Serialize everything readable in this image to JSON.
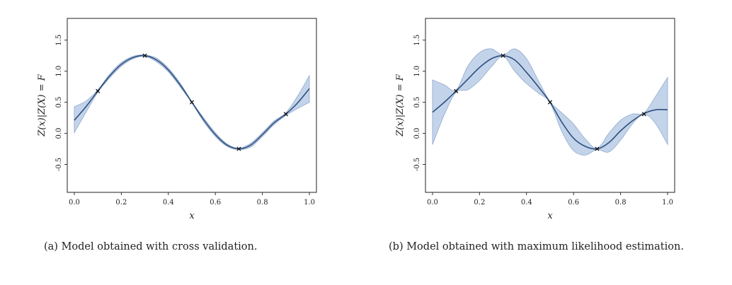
{
  "chart_data": [
    {
      "type": "line",
      "xlabel": "x",
      "ylabel": "Z(x)|Z(X) = F",
      "xlim": [
        -0.03,
        1.03
      ],
      "ylim": [
        -0.95,
        1.85
      ],
      "xticks": [
        "0.0",
        "0.2",
        "0.4",
        "0.6",
        "0.8",
        "1.0"
      ],
      "yticks": [
        "-0.5",
        "0.0",
        "0.5",
        "1.0",
        "1.5"
      ],
      "grid": false,
      "series": [
        {
          "role": "mean",
          "x": [
            0.0,
            0.05,
            0.1,
            0.15,
            0.2,
            0.25,
            0.3,
            0.35,
            0.4,
            0.45,
            0.5,
            0.55,
            0.6,
            0.65,
            0.7,
            0.75,
            0.8,
            0.85,
            0.9,
            0.95,
            1.0
          ],
          "values": [
            0.21,
            0.43,
            0.68,
            0.92,
            1.11,
            1.22,
            1.25,
            1.18,
            1.02,
            0.78,
            0.5,
            0.22,
            -0.02,
            -0.19,
            -0.25,
            -0.19,
            -0.02,
            0.17,
            0.31,
            0.49,
            0.72
          ]
        },
        {
          "role": "band-upper",
          "x": [
            0.0,
            0.05,
            0.1,
            0.15,
            0.2,
            0.25,
            0.3,
            0.35,
            0.4,
            0.45,
            0.5,
            0.55,
            0.6,
            0.65,
            0.7,
            0.75,
            0.8,
            0.85,
            0.9,
            0.95,
            1.0
          ],
          "values": [
            0.43,
            0.52,
            0.7,
            0.95,
            1.14,
            1.24,
            1.26,
            1.21,
            1.05,
            0.81,
            0.51,
            0.25,
            0.01,
            -0.17,
            -0.24,
            -0.16,
            0.01,
            0.2,
            0.33,
            0.6,
            0.93
          ]
        },
        {
          "role": "band-lower",
          "x": [
            0.0,
            0.05,
            0.1,
            0.15,
            0.2,
            0.25,
            0.3,
            0.35,
            0.4,
            0.45,
            0.5,
            0.55,
            0.6,
            0.65,
            0.7,
            0.75,
            0.8,
            0.85,
            0.9,
            0.95,
            1.0
          ],
          "values": [
            0.01,
            0.34,
            0.66,
            0.89,
            1.08,
            1.2,
            1.24,
            1.15,
            0.99,
            0.75,
            0.49,
            0.19,
            -0.05,
            -0.21,
            -0.26,
            -0.22,
            -0.05,
            0.14,
            0.29,
            0.4,
            0.5
          ]
        },
        {
          "role": "observations",
          "x": [
            0.1,
            0.3,
            0.5,
            0.7,
            0.9
          ],
          "values": [
            0.68,
            1.25,
            0.5,
            -0.25,
            0.31
          ]
        }
      ],
      "colors": {
        "mean": "#2f4f7f",
        "band": "#b9cde6",
        "band_edge": "#8fa9cf",
        "markers": "#111111"
      }
    },
    {
      "type": "line",
      "xlabel": "x",
      "ylabel": "Z(x)|Z(X) = F",
      "xlim": [
        -0.03,
        1.03
      ],
      "ylim": [
        -0.95,
        1.85
      ],
      "xticks": [
        "0.0",
        "0.2",
        "0.4",
        "0.6",
        "0.8",
        "1.0"
      ],
      "yticks": [
        "-0.5",
        "0.0",
        "0.5",
        "1.0",
        "1.5"
      ],
      "grid": false,
      "series": [
        {
          "role": "mean",
          "x": [
            0.0,
            0.05,
            0.1,
            0.15,
            0.2,
            0.25,
            0.3,
            0.35,
            0.4,
            0.45,
            0.5,
            0.55,
            0.6,
            0.65,
            0.7,
            0.75,
            0.8,
            0.85,
            0.9,
            0.95,
            1.0
          ],
          "values": [
            0.34,
            0.5,
            0.68,
            0.87,
            1.06,
            1.2,
            1.25,
            1.18,
            0.98,
            0.75,
            0.5,
            0.18,
            -0.08,
            -0.21,
            -0.25,
            -0.15,
            0.04,
            0.2,
            0.32,
            0.38,
            0.38
          ]
        },
        {
          "role": "band-upper",
          "x": [
            0.0,
            0.05,
            0.1,
            0.15,
            0.2,
            0.25,
            0.3,
            0.35,
            0.4,
            0.45,
            0.5,
            0.55,
            0.6,
            0.65,
            0.7,
            0.75,
            0.8,
            0.85,
            0.9,
            0.95,
            1.0
          ],
          "values": [
            0.86,
            0.78,
            0.7,
            1.08,
            1.3,
            1.36,
            1.26,
            1.36,
            1.2,
            0.85,
            0.51,
            0.33,
            0.15,
            -0.09,
            -0.24,
            0.0,
            0.21,
            0.31,
            0.33,
            0.6,
            0.9
          ]
        },
        {
          "role": "band-lower",
          "x": [
            0.0,
            0.05,
            0.1,
            0.15,
            0.2,
            0.25,
            0.3,
            0.35,
            0.4,
            0.45,
            0.5,
            0.55,
            0.6,
            0.65,
            0.7,
            0.75,
            0.8,
            0.85,
            0.9,
            0.95,
            1.0
          ],
          "values": [
            -0.18,
            0.3,
            0.66,
            0.7,
            0.85,
            1.07,
            1.24,
            1.0,
            0.8,
            0.65,
            0.49,
            0.03,
            -0.28,
            -0.35,
            -0.26,
            -0.3,
            -0.11,
            0.15,
            0.31,
            0.15,
            -0.18
          ]
        },
        {
          "role": "observations",
          "x": [
            0.1,
            0.3,
            0.5,
            0.7,
            0.9
          ],
          "values": [
            0.68,
            1.25,
            0.5,
            -0.25,
            0.31
          ]
        }
      ],
      "colors": {
        "mean": "#2f4f7f",
        "band": "#b9cde6",
        "band_edge": "#8fa9cf",
        "markers": "#111111"
      }
    }
  ],
  "captions": {
    "a": "(a) Model obtained with cross validation.",
    "b": "(b) Model obtained with maximum likelihood estimation."
  }
}
